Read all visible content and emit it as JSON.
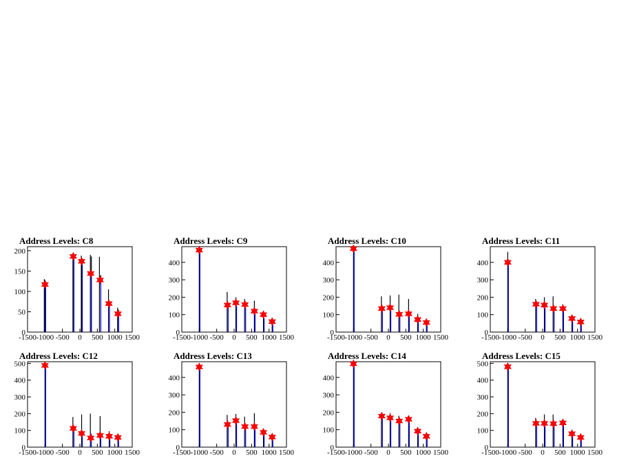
{
  "chart_data": [
    {
      "type": "bar",
      "title": "Address Levels: C8",
      "xlim": [
        -1500,
        1500
      ],
      "ylim": [
        0,
        210
      ],
      "yticks": [
        0,
        50,
        100,
        150,
        200
      ],
      "xticks": [
        -1500,
        -1000,
        -500,
        0,
        500,
        1000,
        1500
      ],
      "xtick_labels": [
        "-1500",
        "-1000",
        "-500",
        "0",
        "500",
        "1000",
        "1500"
      ],
      "black_peaks": [
        [
          -1020,
          130
        ],
        [
          -1000,
          128
        ],
        [
          -200,
          190
        ],
        [
          -170,
          185
        ],
        [
          40,
          188
        ],
        [
          60,
          180
        ],
        [
          300,
          190
        ],
        [
          330,
          186
        ],
        [
          560,
          185
        ],
        [
          600,
          140
        ],
        [
          820,
          105
        ],
        [
          1080,
          60
        ],
        [
          1110,
          55
        ]
      ],
      "blue_peaks": [
        [
          -1000,
          125
        ],
        [
          -190,
          188
        ],
        [
          50,
          170
        ],
        [
          310,
          150
        ],
        [
          580,
          125
        ],
        [
          830,
          75
        ],
        [
          1090,
          40
        ]
      ],
      "markers": [
        [
          -1000,
          117
        ],
        [
          -190,
          186
        ],
        [
          50,
          174
        ],
        [
          310,
          144
        ],
        [
          580,
          128
        ],
        [
          830,
          70
        ],
        [
          1090,
          45
        ]
      ]
    },
    {
      "type": "bar",
      "title": "Address Levels: C9",
      "xlim": [
        -1500,
        1500
      ],
      "ylim": [
        0,
        490
      ],
      "yticks": [
        0,
        100,
        200,
        300,
        400
      ],
      "xticks": [
        -1500,
        -1000,
        -500,
        0,
        500,
        1000,
        1500
      ],
      "xtick_labels": [
        "-1500",
        "-1000",
        "-500",
        "0",
        "500",
        "1000",
        "1500"
      ],
      "black_peaks": [
        [
          -1000,
          470
        ],
        [
          -200,
          230
        ],
        [
          50,
          200
        ],
        [
          300,
          190
        ],
        [
          580,
          180
        ],
        [
          840,
          120
        ],
        [
          1090,
          80
        ]
      ],
      "blue_peaks": [
        [
          -1000,
          470
        ],
        [
          -190,
          160
        ],
        [
          50,
          150
        ],
        [
          310,
          140
        ],
        [
          580,
          110
        ],
        [
          840,
          80
        ],
        [
          1090,
          50
        ]
      ],
      "markers": [
        [
          -1000,
          470
        ],
        [
          -190,
          155
        ],
        [
          50,
          168
        ],
        [
          310,
          158
        ],
        [
          580,
          120
        ],
        [
          840,
          100
        ],
        [
          1090,
          60
        ]
      ]
    },
    {
      "type": "bar",
      "title": "Address Levels: C10",
      "xlim": [
        -1500,
        1500
      ],
      "ylim": [
        0,
        490
      ],
      "yticks": [
        0,
        100,
        200,
        300,
        400
      ],
      "xticks": [
        -1500,
        -1000,
        -500,
        0,
        500,
        1000,
        1500
      ],
      "xtick_labels": [
        "-1500",
        "-1000",
        "-500",
        "0",
        "500",
        "1000",
        "1500"
      ],
      "black_peaks": [
        [
          -1000,
          475
        ],
        [
          -200,
          205
        ],
        [
          50,
          210
        ],
        [
          300,
          215
        ],
        [
          580,
          190
        ],
        [
          840,
          105
        ],
        [
          1090,
          70
        ]
      ],
      "blue_peaks": [
        [
          -1000,
          475
        ],
        [
          -190,
          140
        ],
        [
          50,
          145
        ],
        [
          310,
          110
        ],
        [
          580,
          100
        ],
        [
          840,
          65
        ],
        [
          1090,
          45
        ]
      ],
      "markers": [
        [
          -1000,
          478
        ],
        [
          -190,
          135
        ],
        [
          50,
          140
        ],
        [
          310,
          102
        ],
        [
          580,
          105
        ],
        [
          840,
          72
        ],
        [
          1090,
          55
        ]
      ]
    },
    {
      "type": "bar",
      "title": "Address Levels: C11",
      "xlim": [
        -1500,
        1500
      ],
      "ylim": [
        0,
        490
      ],
      "yticks": [
        0,
        100,
        200,
        300,
        400
      ],
      "xticks": [
        -1500,
        -1000,
        -500,
        0,
        500,
        1000,
        1500
      ],
      "xtick_labels": [
        "-1500",
        "-1000",
        "-500",
        "0",
        "500",
        "1000",
        "1500"
      ],
      "black_peaks": [
        [
          -1000,
          460
        ],
        [
          -200,
          190
        ],
        [
          50,
          200
        ],
        [
          300,
          205
        ],
        [
          580,
          160
        ],
        [
          840,
          95
        ],
        [
          1090,
          75
        ]
      ],
      "blue_peaks": [
        [
          -1000,
          400
        ],
        [
          -190,
          150
        ],
        [
          50,
          140
        ],
        [
          310,
          130
        ],
        [
          580,
          120
        ],
        [
          840,
          70
        ],
        [
          1090,
          45
        ]
      ],
      "markers": [
        [
          -1000,
          400
        ],
        [
          -190,
          160
        ],
        [
          50,
          155
        ],
        [
          310,
          135
        ],
        [
          580,
          135
        ],
        [
          840,
          78
        ],
        [
          1090,
          58
        ]
      ]
    },
    {
      "type": "bar",
      "title": "Address Levels: C12",
      "xlim": [
        -1500,
        1500
      ],
      "ylim": [
        0,
        510
      ],
      "yticks": [
        0,
        100,
        200,
        300,
        400,
        500
      ],
      "xticks": [
        -1500,
        -1000,
        -500,
        0,
        500,
        1000,
        1500
      ],
      "xtick_labels": [
        "-1500",
        "-1000",
        "-500",
        "0",
        "500",
        "1000",
        "1500"
      ],
      "black_peaks": [
        [
          -1000,
          490
        ],
        [
          -200,
          180
        ],
        [
          50,
          195
        ],
        [
          300,
          200
        ],
        [
          580,
          185
        ],
        [
          840,
          95
        ],
        [
          1090,
          70
        ]
      ],
      "blue_peaks": [
        [
          -1000,
          490
        ],
        [
          -190,
          110
        ],
        [
          50,
          90
        ],
        [
          310,
          80
        ],
        [
          580,
          70
        ],
        [
          840,
          60
        ],
        [
          1090,
          45
        ]
      ],
      "markers": [
        [
          -1000,
          488
        ],
        [
          -190,
          112
        ],
        [
          50,
          82
        ],
        [
          310,
          55
        ],
        [
          580,
          70
        ],
        [
          840,
          65
        ],
        [
          1090,
          58
        ]
      ]
    },
    {
      "type": "bar",
      "title": "Address Levels: C13",
      "xlim": [
        -1500,
        1500
      ],
      "ylim": [
        0,
        490
      ],
      "yticks": [
        0,
        100,
        200,
        300,
        400
      ],
      "xticks": [
        -1500,
        -1000,
        -500,
        0,
        500,
        1000,
        1500
      ],
      "xtick_labels": [
        "-1500",
        "-1000",
        "-500",
        "0",
        "500",
        "1000",
        "1500"
      ],
      "black_peaks": [
        [
          -1000,
          460
        ],
        [
          -200,
          185
        ],
        [
          50,
          190
        ],
        [
          300,
          175
        ],
        [
          580,
          195
        ],
        [
          840,
          100
        ],
        [
          1090,
          75
        ]
      ],
      "blue_peaks": [
        [
          -1000,
          460
        ],
        [
          -190,
          130
        ],
        [
          50,
          150
        ],
        [
          310,
          115
        ],
        [
          580,
          110
        ],
        [
          840,
          75
        ],
        [
          1090,
          45
        ]
      ],
      "markers": [
        [
          -1000,
          460
        ],
        [
          -190,
          130
        ],
        [
          50,
          152
        ],
        [
          310,
          118
        ],
        [
          580,
          118
        ],
        [
          840,
          85
        ],
        [
          1090,
          58
        ]
      ]
    },
    {
      "type": "bar",
      "title": "Address Levels: C14",
      "xlim": [
        -1500,
        1500
      ],
      "ylim": [
        0,
        490
      ],
      "yticks": [
        0,
        100,
        200,
        300,
        400
      ],
      "xticks": [
        -1500,
        -1000,
        -500,
        0,
        500,
        1000,
        1500
      ],
      "xtick_labels": [
        "-1500",
        "-1000",
        "-500",
        "0",
        "500",
        "1000",
        "1500"
      ],
      "black_peaks": [
        [
          -1000,
          480
        ],
        [
          -200,
          190
        ],
        [
          50,
          195
        ],
        [
          300,
          180
        ],
        [
          580,
          175
        ],
        [
          840,
          100
        ],
        [
          1090,
          70
        ]
      ],
      "blue_peaks": [
        [
          -1000,
          480
        ],
        [
          -190,
          170
        ],
        [
          50,
          160
        ],
        [
          310,
          140
        ],
        [
          580,
          150
        ],
        [
          840,
          85
        ],
        [
          1090,
          50
        ]
      ],
      "markers": [
        [
          -1000,
          478
        ],
        [
          -190,
          178
        ],
        [
          50,
          168
        ],
        [
          310,
          150
        ],
        [
          580,
          160
        ],
        [
          840,
          92
        ],
        [
          1090,
          62
        ]
      ]
    },
    {
      "type": "bar",
      "title": "Address Levels: C15",
      "xlim": [
        -1500,
        1500
      ],
      "ylim": [
        0,
        510
      ],
      "yticks": [
        0,
        100,
        200,
        300,
        400,
        500
      ],
      "xticks": [
        -1500,
        -1000,
        -500,
        0,
        500,
        1000,
        1500
      ],
      "xtick_labels": [
        "-1500",
        "-1000",
        "-500",
        "0",
        "500",
        "1000",
        "1500"
      ],
      "black_peaks": [
        [
          -1000,
          485
        ],
        [
          -200,
          175
        ],
        [
          50,
          195
        ],
        [
          300,
          195
        ],
        [
          580,
          160
        ],
        [
          840,
          95
        ],
        [
          1090,
          70
        ]
      ],
      "blue_peaks": [
        [
          -1000,
          480
        ],
        [
          -190,
          140
        ],
        [
          50,
          140
        ],
        [
          310,
          130
        ],
        [
          580,
          140
        ],
        [
          840,
          75
        ],
        [
          1090,
          50
        ]
      ],
      "markers": [
        [
          -1000,
          480
        ],
        [
          -190,
          142
        ],
        [
          50,
          142
        ],
        [
          310,
          140
        ],
        [
          580,
          145
        ],
        [
          840,
          80
        ],
        [
          1090,
          58
        ]
      ]
    }
  ],
  "colors": {
    "frame": "#000000",
    "blue_series": "#0000ff",
    "black_series": "#000000",
    "marker": "#ff0000"
  }
}
